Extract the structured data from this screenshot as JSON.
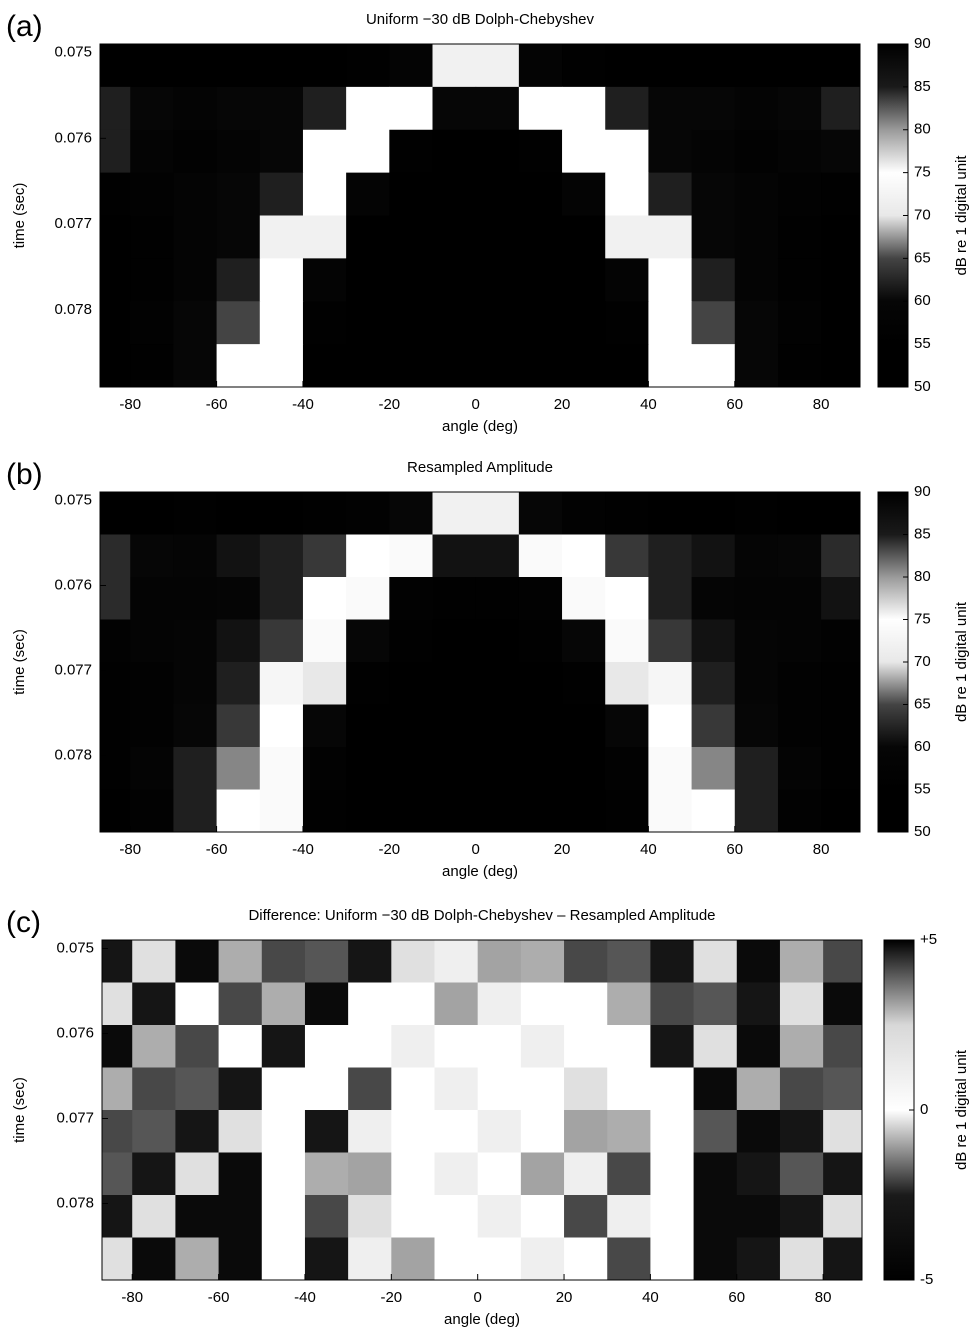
{
  "chart_data": [
    {
      "type": "heatmap",
      "panel_label": "(a)",
      "title": "Uniform −30 dB Dolph-Chebyshev",
      "x_label": "angle (deg)",
      "y_label": "time (sec)",
      "colorbar_label": "dB re 1 digital unit",
      "x": [
        -85,
        -75,
        -65,
        -55,
        -45,
        -35,
        -25,
        -15,
        -5,
        5,
        15,
        25,
        35,
        45,
        55,
        65,
        75,
        85
      ],
      "y": [
        0.07515,
        0.07565,
        0.07615,
        0.07665,
        0.07715,
        0.07765,
        0.07815,
        0.07865
      ],
      "z": [
        [
          55,
          55,
          55,
          55,
          55,
          55,
          56,
          58,
          72,
          72,
          58,
          56,
          55,
          55,
          55,
          55,
          55,
          55
        ],
        [
          62,
          60,
          58,
          60,
          60,
          62,
          75,
          75,
          60,
          60,
          75,
          75,
          62,
          60,
          60,
          58,
          60,
          62
        ],
        [
          62,
          58,
          57,
          58,
          60,
          75,
          75,
          56,
          55,
          55,
          56,
          75,
          75,
          60,
          58,
          57,
          58,
          60
        ],
        [
          56,
          57,
          58,
          60,
          62,
          75,
          58,
          55,
          54,
          54,
          55,
          58,
          75,
          62,
          60,
          58,
          57,
          56
        ],
        [
          55,
          56,
          58,
          60,
          72,
          72,
          55,
          53,
          53,
          53,
          53,
          55,
          72,
          72,
          60,
          58,
          56,
          55
        ],
        [
          55,
          56,
          58,
          62,
          75,
          58,
          54,
          52,
          52,
          52,
          52,
          54,
          58,
          75,
          62,
          58,
          56,
          55
        ],
        [
          55,
          57,
          60,
          65,
          75,
          56,
          53,
          52,
          52,
          52,
          52,
          53,
          56,
          75,
          65,
          60,
          57,
          55
        ],
        [
          54,
          56,
          60,
          75,
          75,
          55,
          53,
          52,
          52,
          52,
          52,
          53,
          55,
          75,
          75,
          60,
          56,
          54
        ]
      ],
      "xlim": [
        -87,
        89
      ],
      "ylim": [
        0.0749,
        0.0789
      ],
      "y_reversed": true,
      "xticks": [
        -80,
        -60,
        -40,
        -20,
        0,
        20,
        40,
        60,
        80
      ],
      "yticks": [
        0.075,
        0.076,
        0.077,
        0.078
      ],
      "zlim": [
        50,
        90
      ],
      "zticks": [
        50,
        55,
        60,
        65,
        70,
        75,
        80,
        85,
        90
      ],
      "colormap": [
        "#000000",
        "#000000",
        "#060606",
        "#444444",
        "#e8e8e8",
        "#ffffff",
        "#9a9a9a",
        "#1a1a1a",
        "#000000"
      ]
    },
    {
      "type": "heatmap",
      "panel_label": "(b)",
      "title": "Resampled Amplitude",
      "x_label": "angle (deg)",
      "y_label": "time (sec)",
      "colorbar_label": "dB re 1 digital unit",
      "x": [
        -85,
        -75,
        -65,
        -55,
        -45,
        -35,
        -25,
        -15,
        -5,
        5,
        15,
        25,
        35,
        45,
        55,
        65,
        75,
        85
      ],
      "y": [
        0.07515,
        0.07565,
        0.07615,
        0.07665,
        0.07715,
        0.07765,
        0.07815,
        0.07865
      ],
      "z": [
        [
          55,
          55,
          56,
          55,
          55,
          56,
          57,
          60,
          72,
          72,
          60,
          57,
          56,
          55,
          55,
          56,
          55,
          55
        ],
        [
          63,
          60,
          59,
          61,
          62,
          64,
          75,
          74,
          61,
          61,
          74,
          75,
          64,
          62,
          61,
          59,
          60,
          63
        ],
        [
          63,
          58,
          58,
          59,
          62,
          75,
          74,
          57,
          56,
          56,
          57,
          74,
          75,
          62,
          59,
          58,
          58,
          61
        ],
        [
          57,
          58,
          59,
          61,
          64,
          74,
          60,
          56,
          55,
          55,
          56,
          60,
          74,
          64,
          61,
          59,
          58,
          57
        ],
        [
          56,
          57,
          59,
          62,
          73,
          70,
          56,
          54,
          53,
          53,
          54,
          56,
          70,
          73,
          62,
          59,
          57,
          56
        ],
        [
          56,
          57,
          60,
          64,
          75,
          60,
          55,
          53,
          52,
          52,
          53,
          55,
          60,
          75,
          64,
          60,
          57,
          56
        ],
        [
          56,
          58,
          62,
          67,
          74,
          57,
          54,
          52,
          52,
          52,
          52,
          54,
          57,
          74,
          67,
          62,
          58,
          56
        ],
        [
          55,
          57,
          62,
          75,
          74,
          56,
          54,
          52,
          52,
          52,
          52,
          54,
          56,
          74,
          75,
          62,
          57,
          55
        ]
      ],
      "xlim": [
        -87,
        89
      ],
      "ylim": [
        0.0749,
        0.0789
      ],
      "y_reversed": true,
      "xticks": [
        -80,
        -60,
        -40,
        -20,
        0,
        20,
        40,
        60,
        80
      ],
      "yticks": [
        0.075,
        0.076,
        0.077,
        0.078
      ],
      "zlim": [
        50,
        90
      ],
      "zticks": [
        50,
        55,
        60,
        65,
        70,
        75,
        80,
        85,
        90
      ],
      "colormap": [
        "#000000",
        "#000000",
        "#060606",
        "#444444",
        "#e8e8e8",
        "#ffffff",
        "#9a9a9a",
        "#1a1a1a",
        "#000000"
      ]
    },
    {
      "type": "heatmap",
      "panel_label": "(c)",
      "title": "Difference: Uniform −30 dB Dolph-Chebyshev – Resampled Amplitude",
      "x_label": "angle (deg)",
      "y_label": "time (sec)",
      "colorbar_label": "dB re 1 digital unit",
      "x": [
        -85,
        -75,
        -65,
        -55,
        -45,
        -35,
        -25,
        -15,
        -5,
        5,
        15,
        25,
        35,
        45,
        55,
        65,
        75,
        85
      ],
      "y": [
        0.07515,
        0.07565,
        0.07615,
        0.07665,
        0.07715,
        0.07765,
        0.07815,
        0.07865
      ],
      "z": [
        [
          -3,
          2,
          -4,
          3,
          -2,
          4,
          -3,
          2,
          1,
          -1,
          3,
          -2,
          4,
          -3,
          2,
          -4,
          3,
          -2
        ],
        [
          2,
          -3,
          0,
          -2,
          3,
          -4,
          0,
          0,
          -1,
          1,
          0,
          0,
          3,
          -2,
          4,
          -3,
          2,
          -4
        ],
        [
          -4,
          3,
          -2,
          0,
          -3,
          0,
          0,
          1,
          0,
          0,
          1,
          0,
          0,
          -3,
          2,
          -4,
          3,
          -2
        ],
        [
          3,
          -2,
          4,
          -3,
          0,
          0,
          -2,
          0,
          1,
          0,
          0,
          2,
          0,
          0,
          -4,
          3,
          -2,
          4
        ],
        [
          -2,
          4,
          -3,
          2,
          0,
          -3,
          1,
          0,
          0,
          1,
          0,
          -1,
          3,
          0,
          4,
          -4,
          -3,
          2
        ],
        [
          4,
          -3,
          2,
          -4,
          0,
          3,
          -1,
          0,
          1,
          0,
          -1,
          1,
          -2,
          0,
          -4,
          -3,
          4,
          -3
        ],
        [
          -3,
          2,
          -4,
          -4,
          0,
          -2,
          2,
          0,
          0,
          1,
          0,
          -2,
          1,
          0,
          -4,
          -4,
          -3,
          2
        ],
        [
          2,
          -4,
          3,
          -4,
          0,
          -3,
          1,
          -1,
          0,
          0,
          1,
          0,
          -2,
          0,
          -4,
          -3,
          2,
          -3
        ]
      ],
      "xlim": [
        -87,
        89
      ],
      "ylim": [
        0.0749,
        0.0789
      ],
      "y_reversed": true,
      "xticks": [
        -80,
        -60,
        -40,
        -20,
        0,
        20,
        40,
        60,
        80
      ],
      "yticks": [
        0.075,
        0.076,
        0.077,
        0.078
      ],
      "zlim": [
        -5,
        5
      ],
      "zticks": [
        {
          "value": 5,
          "label": "+5"
        },
        0,
        -5
      ],
      "colormap": [
        "#000000",
        "#1a1a1a",
        "#ffffff",
        "#d8d8d8",
        "#000000"
      ]
    }
  ]
}
